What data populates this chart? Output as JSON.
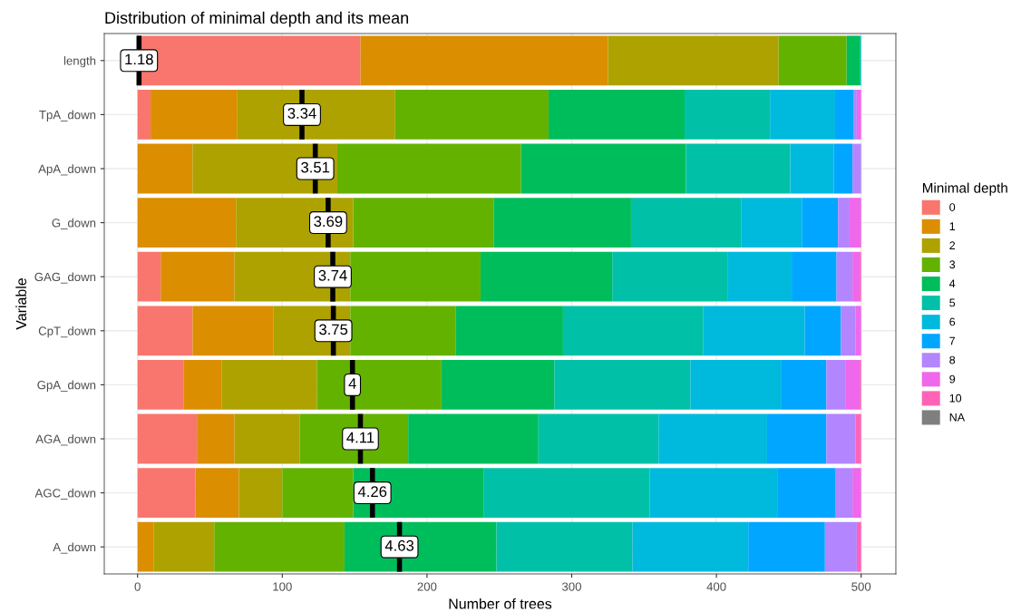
{
  "chart_data": {
    "type": "bar",
    "orientation": "horizontal",
    "stacked": true,
    "title": "Distribution of minimal depth and its mean",
    "xlabel": "Number of trees",
    "ylabel": "Variable",
    "legend_title": "Minimal depth",
    "categories": [
      "length",
      "TpA_down",
      "ApA_down",
      "G_down",
      "GAG_down",
      "CpT_down",
      "GpA_down",
      "AGA_down",
      "AGC_down",
      "A_down"
    ],
    "series": [
      {
        "name": "0",
        "color": "#f8766d",
        "values": [
          154,
          9,
          0,
          0,
          16,
          38,
          32,
          41,
          40,
          0
        ]
      },
      {
        "name": "1",
        "color": "#db8e00",
        "values": [
          171,
          60,
          38,
          68,
          51,
          56,
          26,
          26,
          30,
          11
        ]
      },
      {
        "name": "2",
        "color": "#aea200",
        "values": [
          118,
          109,
          100,
          81,
          80,
          53,
          66,
          45,
          30,
          42
        ]
      },
      {
        "name": "3",
        "color": "#64b200",
        "values": [
          47,
          106,
          127,
          97,
          90,
          73,
          86,
          75,
          49,
          90
        ]
      },
      {
        "name": "4",
        "color": "#00bd5c",
        "values": [
          9,
          94,
          114,
          95,
          91,
          74,
          78,
          90,
          90,
          105
        ]
      },
      {
        "name": "5",
        "color": "#00c1a7",
        "values": [
          1,
          59,
          72,
          76,
          80,
          97,
          94,
          83,
          115,
          94
        ]
      },
      {
        "name": "6",
        "color": "#00bade",
        "values": [
          0,
          45,
          30,
          42,
          44,
          70,
          63,
          75,
          88,
          80
        ]
      },
      {
        "name": "7",
        "color": "#00a6ff",
        "values": [
          0,
          13,
          13,
          25,
          31,
          25,
          31,
          41,
          40,
          53
        ]
      },
      {
        "name": "8",
        "color": "#b385ff",
        "values": [
          0,
          2,
          6,
          8,
          11,
          10,
          13,
          20,
          12,
          22
        ]
      },
      {
        "name": "9",
        "color": "#ef67eb",
        "values": [
          0,
          3,
          0,
          8,
          5,
          4,
          10,
          0,
          6,
          0
        ]
      },
      {
        "name": "10",
        "color": "#ff63b6",
        "values": [
          0,
          0,
          0,
          0,
          1,
          0,
          1,
          4,
          0,
          3
        ]
      },
      {
        "name": "NA",
        "color": "#7f7f7f",
        "values": [
          null,
          null,
          null,
          null,
          null,
          null,
          null,
          null,
          null,
          null
        ]
      }
    ],
    "annotations": [
      {
        "text": "1.18",
        "x": 1,
        "y": "length"
      },
      {
        "text": "3.34",
        "x": 113.6,
        "y": "TpA_down"
      },
      {
        "text": "3.51",
        "x": 122.8,
        "y": "ApA_down"
      },
      {
        "text": "3.69",
        "x": 131.7,
        "y": "G_down"
      },
      {
        "text": "3.74",
        "x": 134.9,
        "y": "GAG_down"
      },
      {
        "text": "3.75",
        "x": 135.3,
        "y": "CpT_down"
      },
      {
        "text": "4",
        "x": 148.5,
        "y": "GpA_down"
      },
      {
        "text": "4.11",
        "x": 154,
        "y": "AGA_down"
      },
      {
        "text": "4.26",
        "x": 162.3,
        "y": "AGC_down"
      },
      {
        "text": "4.63",
        "x": 181,
        "y": "A_down"
      }
    ],
    "xlim": [
      -23,
      524
    ],
    "xticks": [
      0,
      100,
      200,
      300,
      400,
      500
    ],
    "grid": true,
    "legend": "right"
  }
}
